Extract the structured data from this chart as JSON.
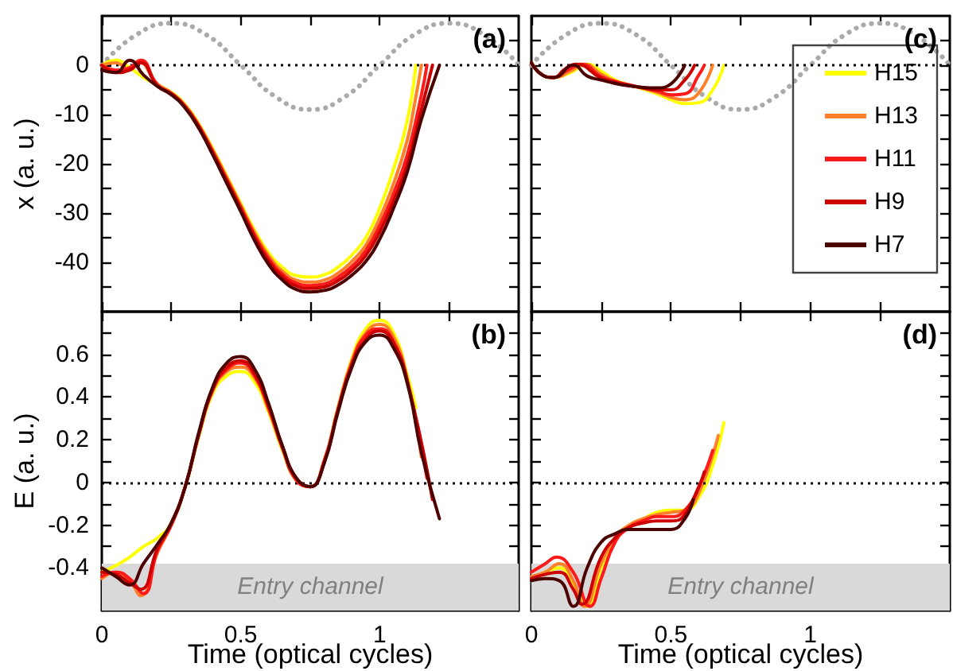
{
  "chart_data": [
    {
      "type": "line",
      "title": "(a)",
      "ylabel": "x (a. u.)",
      "xlim": [
        0,
        1.5
      ],
      "ylim": [
        -50,
        10
      ],
      "tick_labels": "y",
      "marker": "none",
      "line_style": "solid",
      "grid": false,
      "xticks": [
        0,
        {
          "value": 0.25,
          "label": null
        },
        0.5,
        {
          "value": 0.75,
          "label": null
        },
        1,
        {
          "value": 1.25,
          "label": null
        }
      ],
      "yticks": [
        {
          "value": -45,
          "label": null
        },
        -40,
        {
          "value": -35,
          "label": null
        },
        -30,
        {
          "value": -25,
          "label": null
        },
        -20,
        {
          "value": -15,
          "label": null
        },
        -10,
        {
          "value": -5,
          "label": null
        },
        0,
        {
          "value": 5,
          "label": null
        }
      ],
      "ref_lines": [
        {
          "axis": "y",
          "value": 0,
          "color": "#000000",
          "line_style": "dotted"
        }
      ],
      "series": [
        {
          "color": "#aaaaaa",
          "line_style": "dotted",
          "x": [
            0,
            0.125,
            0.25,
            0.375,
            0.5,
            0.625,
            0.75,
            0.875,
            1,
            1.125,
            1.25,
            1.375,
            1.5
          ],
          "values": [
            0,
            6.2,
            8.5,
            6.2,
            0,
            -6.4,
            -9,
            -6.4,
            0,
            6.2,
            8.5,
            6.2,
            0
          ]
        },
        {
          "color": "#ffff00",
          "x": [
            0,
            0.05,
            0.1,
            0.15,
            0.2,
            0.25,
            0.3,
            0.35,
            0.4,
            0.45,
            0.5,
            0.55,
            0.6,
            0.65,
            0.7,
            0.75,
            0.8,
            0.85,
            0.9,
            0.95,
            1.0,
            1.05,
            1.1,
            1.13
          ],
          "values": [
            0,
            1,
            -0.5,
            -2.5,
            -4,
            -5.5,
            -8,
            -12,
            -17,
            -22.5,
            -28,
            -33.5,
            -38,
            -41,
            -42.7,
            -43,
            -42.5,
            -41,
            -38.5,
            -35,
            -29,
            -21,
            -11,
            0
          ]
        },
        {
          "color": "#ff7f2a",
          "x": [
            0,
            0.05,
            0.1,
            0.13,
            0.2,
            0.25,
            0.3,
            0.35,
            0.4,
            0.45,
            0.5,
            0.55,
            0.6,
            0.65,
            0.7,
            0.75,
            0.8,
            0.85,
            0.9,
            0.95,
            1.0,
            1.05,
            1.1,
            1.125,
            1.15
          ],
          "values": [
            0,
            0.5,
            -1,
            0.8,
            -3.8,
            -5.6,
            -8.2,
            -12.2,
            -17.3,
            -22.8,
            -28.4,
            -34,
            -38.6,
            -41.8,
            -43.6,
            -44,
            -43.6,
            -42.2,
            -39.8,
            -36.5,
            -31,
            -24,
            -15,
            -8,
            0
          ]
        },
        {
          "color": "#ff1a1a",
          "x": [
            0,
            0.05,
            0.1,
            0.14,
            0.2,
            0.25,
            0.3,
            0.35,
            0.4,
            0.45,
            0.5,
            0.55,
            0.6,
            0.65,
            0.7,
            0.75,
            0.8,
            0.85,
            0.9,
            0.95,
            1.0,
            1.05,
            1.1,
            1.15,
            1.17
          ],
          "values": [
            0,
            -1,
            -0.5,
            1,
            -4,
            -5.7,
            -8.3,
            -12.4,
            -17.6,
            -23.2,
            -28.8,
            -34.5,
            -39.2,
            -42.4,
            -44.2,
            -44.7,
            -44.4,
            -43,
            -40.8,
            -37.6,
            -32.5,
            -26,
            -18,
            -6,
            0
          ]
        },
        {
          "color": "#cc0000",
          "x": [
            0,
            0.05,
            0.1,
            0.14,
            0.2,
            0.25,
            0.3,
            0.35,
            0.4,
            0.45,
            0.5,
            0.55,
            0.6,
            0.65,
            0.7,
            0.75,
            0.8,
            0.85,
            0.9,
            0.95,
            1.0,
            1.05,
            1.1,
            1.15,
            1.19
          ],
          "values": [
            0,
            -1.5,
            -1,
            0.5,
            -4.2,
            -5.8,
            -8.5,
            -12.6,
            -17.9,
            -23.5,
            -29.2,
            -35,
            -39.7,
            -42.9,
            -44.8,
            -45.3,
            -45,
            -43.7,
            -41.6,
            -38.6,
            -33.8,
            -27.5,
            -20,
            -9,
            0
          ]
        },
        {
          "color": "#4d0000",
          "x": [
            0,
            0.05,
            0.1,
            0.15,
            0.2,
            0.25,
            0.3,
            0.35,
            0.4,
            0.45,
            0.5,
            0.55,
            0.6,
            0.65,
            0.7,
            0.75,
            0.8,
            0.85,
            0.9,
            0.95,
            1.0,
            1.05,
            1.1,
            1.15,
            1.215
          ],
          "values": [
            -1,
            -1.5,
            1,
            -2,
            -4.3,
            -6,
            -8.7,
            -12.9,
            -18.3,
            -24,
            -29.7,
            -35.6,
            -40.4,
            -43.6,
            -45.5,
            -46,
            -45.7,
            -44.6,
            -42.6,
            -39.8,
            -35.3,
            -29,
            -21.5,
            -11,
            0
          ]
        }
      ]
    },
    {
      "type": "line",
      "title": "(c)",
      "xlim": [
        0,
        1.5
      ],
      "ylim": [
        -50,
        10
      ],
      "tick_labels": false,
      "marker": "none",
      "line_style": "solid",
      "grid": false,
      "legend": "right",
      "xticks": [
        0,
        {
          "value": 0.25,
          "label": null
        },
        0.5,
        {
          "value": 0.75,
          "label": null
        },
        1,
        {
          "value": 1.25,
          "label": null
        }
      ],
      "yticks": [
        {
          "value": -45,
          "label": null
        },
        -40,
        {
          "value": -35,
          "label": null
        },
        -30,
        {
          "value": -25,
          "label": null
        },
        -20,
        {
          "value": -15,
          "label": null
        },
        -10,
        {
          "value": -5,
          "label": null
        },
        0,
        {
          "value": 5,
          "label": null
        }
      ],
      "ref_lines": [
        {
          "axis": "y",
          "value": 0,
          "color": "#000000",
          "line_style": "dotted"
        }
      ],
      "series": [
        {
          "color": "#aaaaaa",
          "line_style": "dotted",
          "x": [
            0,
            0.125,
            0.25,
            0.375,
            0.5,
            0.625,
            0.75,
            0.875,
            1,
            1.125,
            1.25,
            1.375,
            1.5
          ],
          "values": [
            0,
            6.2,
            8.5,
            6.2,
            0,
            -6.4,
            -9,
            -6.4,
            0,
            6.2,
            8.5,
            6.2,
            0
          ]
        },
        {
          "name": "H15",
          "color": "#ffff00",
          "x": [
            0,
            0.04,
            0.08,
            0.14,
            0.2,
            0.25,
            0.3,
            0.35,
            0.4,
            0.45,
            0.5,
            0.55,
            0.6,
            0.65,
            0.69
          ],
          "values": [
            0.5,
            -2,
            -2.5,
            -1.5,
            0.2,
            -1.2,
            -3,
            -4,
            -4.8,
            -5.8,
            -7,
            -7.8,
            -7.6,
            -5,
            0
          ]
        },
        {
          "name": "H13",
          "color": "#ff7f2a",
          "x": [
            0,
            0.04,
            0.08,
            0.14,
            0.19,
            0.25,
            0.3,
            0.35,
            0.4,
            0.45,
            0.5,
            0.55,
            0.6,
            0.65
          ],
          "values": [
            0.5,
            -2,
            -2.5,
            -1.2,
            0.2,
            -1.8,
            -3.2,
            -4,
            -4.7,
            -5.5,
            -6.5,
            -7,
            -5.6,
            0
          ]
        },
        {
          "name": "H11",
          "color": "#ff1a1a",
          "x": [
            0,
            0.04,
            0.08,
            0.13,
            0.18,
            0.25,
            0.3,
            0.35,
            0.4,
            0.45,
            0.5,
            0.55,
            0.6,
            0.62
          ],
          "values": [
            0.5,
            -2,
            -2.5,
            -1,
            0.2,
            -2.3,
            -3.3,
            -4,
            -4.6,
            -5.2,
            -6,
            -5.8,
            -2,
            0
          ]
        },
        {
          "name": "H9",
          "color": "#cc0000",
          "x": [
            0,
            0.04,
            0.08,
            0.12,
            0.16,
            0.25,
            0.3,
            0.35,
            0.4,
            0.45,
            0.5,
            0.55,
            0.585
          ],
          "values": [
            0.5,
            -2,
            -2.5,
            -0.8,
            0.2,
            -2.6,
            -3.5,
            -4.1,
            -4.6,
            -5,
            -5,
            -3,
            0
          ]
        },
        {
          "name": "H7",
          "color": "#4d0000",
          "x": [
            0,
            0.04,
            0.08,
            0.15,
            0.2,
            0.25,
            0.3,
            0.35,
            0.4,
            0.45,
            0.5,
            0.55
          ],
          "values": [
            0.5,
            -2,
            -2.5,
            0,
            -2.2,
            -3,
            -3.7,
            -4.2,
            -4.5,
            -4.6,
            -3.8,
            0
          ]
        }
      ]
    },
    {
      "type": "line",
      "title": "(b)",
      "xlabel": "Time (optical cycles)",
      "ylabel": "E (a. u.)",
      "xlim": [
        0,
        1.5
      ],
      "ylim": [
        -0.6,
        0.8
      ],
      "marker": "none",
      "line_style": "solid",
      "grid": false,
      "xticks": [
        0,
        {
          "value": 0.25,
          "label": null
        },
        0.5,
        {
          "value": 0.75,
          "label": null
        },
        1,
        {
          "value": 1.25,
          "label": null
        }
      ],
      "yticks": [
        {
          "value": -0.5,
          "label": null
        },
        -0.4,
        {
          "value": -0.3,
          "label": null
        },
        -0.2,
        {
          "value": -0.1,
          "label": null
        },
        0,
        {
          "value": 0.1,
          "label": null
        },
        0.2,
        {
          "value": 0.3,
          "label": null
        },
        0.4,
        {
          "value": 0.5,
          "label": null
        },
        0.6,
        {
          "value": 0.7,
          "label": null
        }
      ],
      "ref_lines": [
        {
          "axis": "y",
          "value": 0,
          "color": "#000000",
          "line_style": "dotted"
        }
      ],
      "bands": [
        {
          "axis": "y",
          "from": -0.6,
          "to": -0.38,
          "label": "Entry channel",
          "color": "#d9d9d9"
        }
      ],
      "series": [
        {
          "color": "#ffff00",
          "x": [
            0,
            0.05,
            0.1,
            0.15,
            0.2,
            0.25,
            0.3,
            0.35,
            0.4,
            0.45,
            0.5,
            0.55,
            0.6,
            0.65,
            0.7,
            0.75,
            0.8,
            0.85,
            0.9,
            0.95,
            1.0,
            1.05,
            1.1,
            1.13
          ],
          "values": [
            -0.42,
            -0.39,
            -0.35,
            -0.3,
            -0.26,
            -0.19,
            -0.02,
            0.22,
            0.42,
            0.5,
            0.52,
            0.47,
            0.33,
            0.15,
            0.01,
            -0.02,
            0.1,
            0.35,
            0.58,
            0.72,
            0.76,
            0.7,
            0.5,
            0.35
          ]
        },
        {
          "color": "#ff7f2a",
          "x": [
            0,
            0.05,
            0.1,
            0.14,
            0.2,
            0.25,
            0.3,
            0.35,
            0.4,
            0.45,
            0.5,
            0.55,
            0.6,
            0.65,
            0.7,
            0.75,
            0.8,
            0.85,
            0.9,
            0.95,
            1.0,
            1.05,
            1.1,
            1.15
          ],
          "values": [
            -0.45,
            -0.42,
            -0.46,
            -0.53,
            -0.33,
            -0.2,
            -0.02,
            0.23,
            0.43,
            0.52,
            0.54,
            0.49,
            0.34,
            0.16,
            0.01,
            -0.02,
            0.1,
            0.35,
            0.57,
            0.7,
            0.74,
            0.68,
            0.48,
            0.12
          ]
        },
        {
          "color": "#ff1a1a",
          "x": [
            0,
            0.05,
            0.1,
            0.15,
            0.2,
            0.25,
            0.3,
            0.35,
            0.4,
            0.45,
            0.5,
            0.55,
            0.6,
            0.65,
            0.7,
            0.75,
            0.8,
            0.85,
            0.9,
            0.95,
            1.0,
            1.05,
            1.1,
            1.17
          ],
          "values": [
            -0.44,
            -0.42,
            -0.45,
            -0.52,
            -0.32,
            -0.2,
            -0.02,
            0.23,
            0.44,
            0.53,
            0.56,
            0.5,
            0.35,
            0.16,
            0.01,
            -0.02,
            0.1,
            0.34,
            0.56,
            0.69,
            0.72,
            0.66,
            0.47,
            0.02
          ]
        },
        {
          "color": "#cc0000",
          "x": [
            0,
            0.05,
            0.1,
            0.14,
            0.2,
            0.25,
            0.3,
            0.35,
            0.4,
            0.45,
            0.5,
            0.55,
            0.6,
            0.65,
            0.7,
            0.75,
            0.8,
            0.85,
            0.9,
            0.95,
            1.0,
            1.05,
            1.1,
            1.19
          ],
          "values": [
            -0.42,
            -0.43,
            -0.47,
            -0.5,
            -0.31,
            -0.19,
            -0.02,
            0.23,
            0.44,
            0.54,
            0.57,
            0.51,
            0.36,
            0.17,
            0.02,
            -0.02,
            0.09,
            0.34,
            0.55,
            0.67,
            0.71,
            0.65,
            0.47,
            -0.08
          ]
        },
        {
          "color": "#4d0000",
          "x": [
            0,
            0.05,
            0.1,
            0.15,
            0.2,
            0.25,
            0.3,
            0.35,
            0.4,
            0.45,
            0.5,
            0.55,
            0.6,
            0.65,
            0.7,
            0.75,
            0.8,
            0.85,
            0.9,
            0.95,
            1.0,
            1.05,
            1.1,
            1.15,
            1.215
          ],
          "values": [
            -0.4,
            -0.44,
            -0.48,
            -0.38,
            -0.29,
            -0.19,
            -0.02,
            0.24,
            0.45,
            0.56,
            0.59,
            0.53,
            0.37,
            0.17,
            0.02,
            -0.02,
            0.09,
            0.33,
            0.54,
            0.66,
            0.69,
            0.63,
            0.46,
            0.14,
            -0.17
          ]
        }
      ]
    },
    {
      "type": "line",
      "title": "(d)",
      "xlabel": "Time (optical cycles)",
      "xlim": [
        0,
        1.5
      ],
      "ylim": [
        -0.6,
        0.8
      ],
      "tick_labels": "x",
      "marker": "none",
      "line_style": "solid",
      "grid": false,
      "xticks": [
        0,
        {
          "value": 0.25,
          "label": null
        },
        0.5,
        {
          "value": 0.75,
          "label": null
        },
        1,
        {
          "value": 1.25,
          "label": null
        }
      ],
      "yticks": [
        {
          "value": -0.5,
          "label": null
        },
        -0.4,
        {
          "value": -0.3,
          "label": null
        },
        -0.2,
        {
          "value": -0.1,
          "label": null
        },
        0,
        {
          "value": 0.1,
          "label": null
        },
        0.2,
        {
          "value": 0.3,
          "label": null
        },
        0.4,
        {
          "value": 0.5,
          "label": null
        },
        0.6,
        {
          "value": 0.7,
          "label": null
        }
      ],
      "ref_lines": [
        {
          "axis": "y",
          "value": 0,
          "color": "#000000",
          "line_style": "dotted"
        }
      ],
      "bands": [
        {
          "axis": "y",
          "from": -0.6,
          "to": -0.38,
          "label": "Entry channel",
          "color": "#d9d9d9"
        }
      ],
      "series": [
        {
          "color": "#ffff00",
          "x": [
            0,
            0.05,
            0.1,
            0.15,
            0.2,
            0.25,
            0.3,
            0.35,
            0.4,
            0.45,
            0.5,
            0.55,
            0.6,
            0.65,
            0.69
          ],
          "values": [
            -0.45,
            -0.42,
            -0.4,
            -0.48,
            -0.58,
            -0.4,
            -0.26,
            -0.2,
            -0.17,
            -0.14,
            -0.13,
            -0.13,
            -0.07,
            0.08,
            0.28
          ]
        },
        {
          "color": "#ff7f2a",
          "x": [
            0,
            0.05,
            0.1,
            0.15,
            0.19,
            0.25,
            0.3,
            0.35,
            0.4,
            0.45,
            0.5,
            0.55,
            0.6,
            0.67
          ],
          "values": [
            -0.44,
            -0.42,
            -0.38,
            -0.46,
            -0.58,
            -0.38,
            -0.26,
            -0.2,
            -0.17,
            -0.15,
            -0.14,
            -0.13,
            -0.05,
            0.22
          ]
        },
        {
          "color": "#ff1a1a",
          "x": [
            0,
            0.05,
            0.09,
            0.15,
            0.21,
            0.25,
            0.3,
            0.35,
            0.4,
            0.45,
            0.5,
            0.55,
            0.6,
            0.65
          ],
          "values": [
            -0.42,
            -0.38,
            -0.35,
            -0.42,
            -0.58,
            -0.45,
            -0.28,
            -0.21,
            -0.18,
            -0.16,
            -0.16,
            -0.13,
            -0.02,
            0.15
          ]
        },
        {
          "color": "#cc0000",
          "x": [
            0,
            0.05,
            0.1,
            0.15,
            0.18,
            0.25,
            0.3,
            0.35,
            0.4,
            0.45,
            0.5,
            0.55,
            0.62
          ],
          "values": [
            -0.45,
            -0.43,
            -0.42,
            -0.5,
            -0.57,
            -0.35,
            -0.26,
            -0.21,
            -0.19,
            -0.18,
            -0.18,
            -0.15,
            0.05
          ]
        },
        {
          "color": "#4d0000",
          "x": [
            0,
            0.05,
            0.1,
            0.15,
            0.2,
            0.25,
            0.3,
            0.35,
            0.4,
            0.45,
            0.5,
            0.55,
            0.58
          ],
          "values": [
            -0.46,
            -0.45,
            -0.46,
            -0.58,
            -0.4,
            -0.28,
            -0.24,
            -0.22,
            -0.22,
            -0.22,
            -0.22,
            -0.17,
            -0.08
          ]
        }
      ]
    }
  ]
}
